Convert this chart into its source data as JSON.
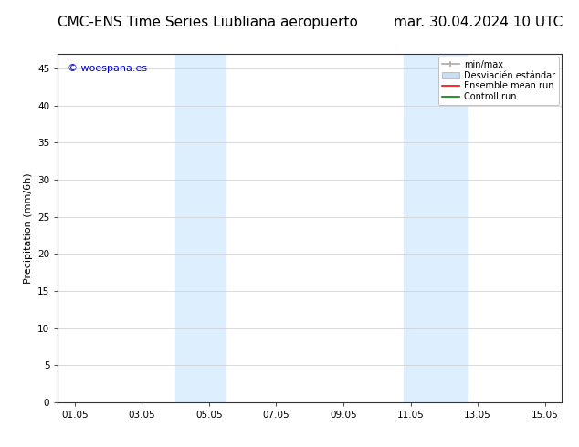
{
  "title_left": "CMC-ENS Time Series Liubliana aeropuerto",
  "title_right": "mar. 30.04.2024 10 UTC",
  "ylabel": "Precipitation (mm/6h)",
  "watermark": "© woespana.es",
  "xlim_start": 0.5,
  "xlim_end": 15.5,
  "ylim": [
    0,
    47
  ],
  "yticks": [
    0,
    5,
    10,
    15,
    20,
    25,
    30,
    35,
    40,
    45
  ],
  "xtick_labels": [
    "01.05",
    "03.05",
    "05.05",
    "07.05",
    "09.05",
    "11.05",
    "13.05",
    "15.05"
  ],
  "xtick_positions": [
    1,
    3,
    5,
    7,
    9,
    11,
    13,
    15
  ],
  "shaded_bands": [
    {
      "x_start": 4.0,
      "x_end": 5.5
    },
    {
      "x_start": 10.8,
      "x_end": 12.7
    }
  ],
  "shaded_color": "#ddeeff",
  "background_color": "#ffffff",
  "title_fontsize": 11,
  "axis_fontsize": 8,
  "tick_fontsize": 7.5,
  "watermark_color": "#0000cc",
  "watermark_fontsize": 8,
  "legend_fontsize": 7,
  "minmax_color": "#aaaaaa",
  "std_color": "#ccddef",
  "ensemble_color": "#ff0000",
  "control_color": "#008000"
}
